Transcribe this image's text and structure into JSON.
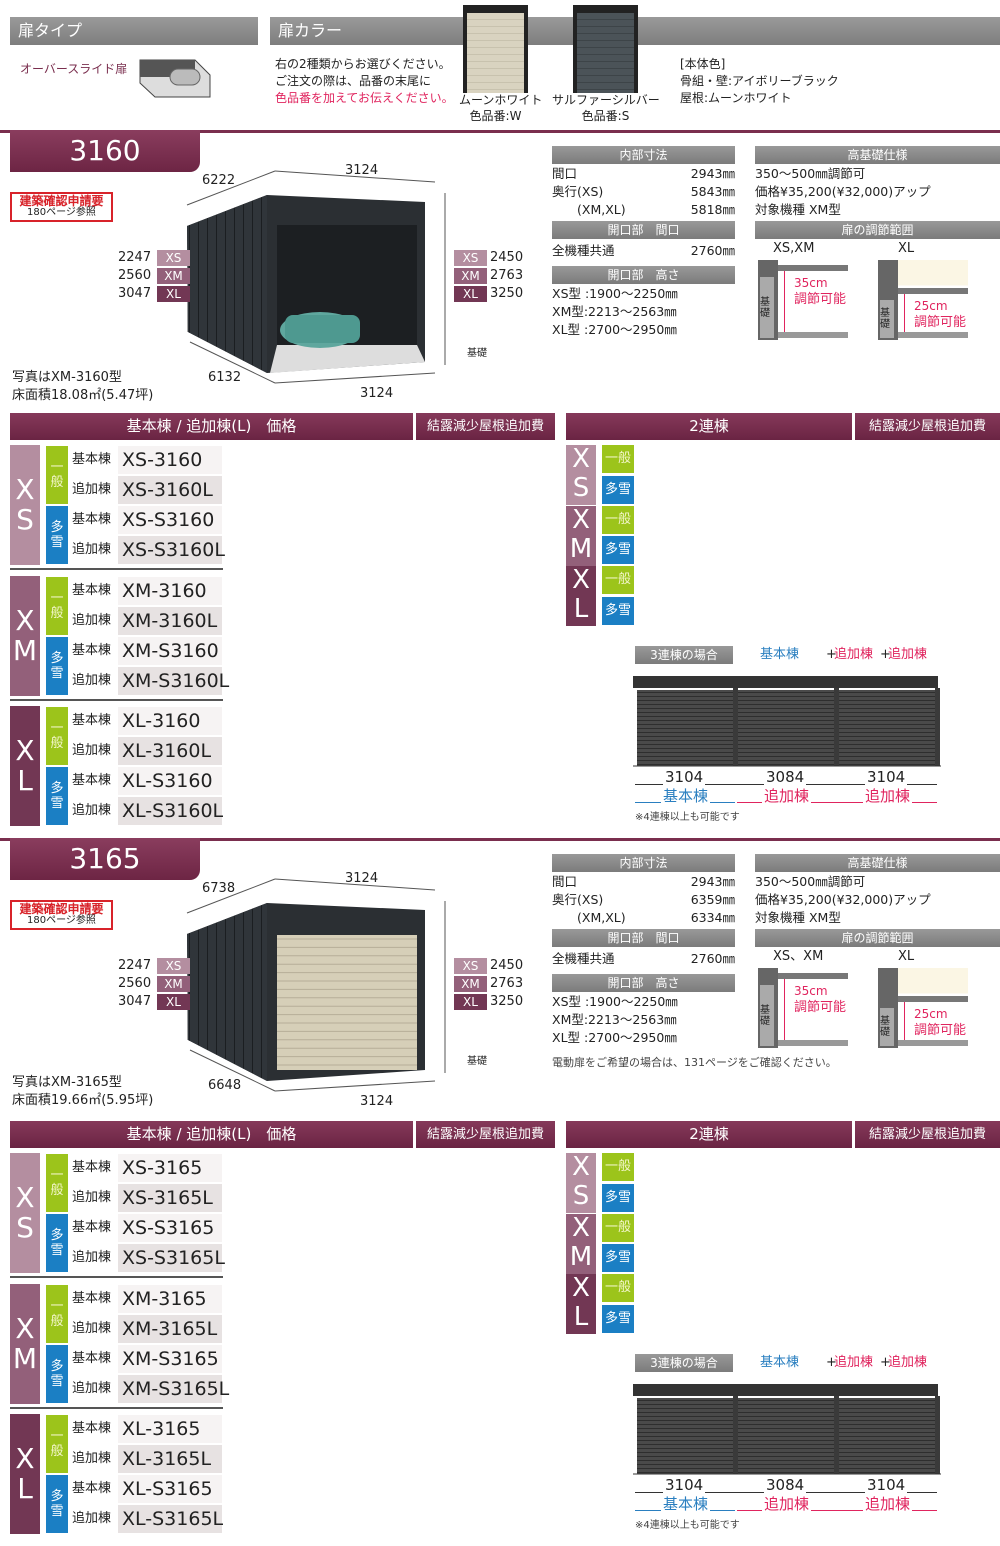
{
  "colors": {
    "maroon": "#7a2e4e",
    "xs": "#b48ea0",
    "xm": "#93607a",
    "xl": "#723754",
    "general": "#9cc41b",
    "snow": "#1b7fc4",
    "blue_text": "#2a7fc0",
    "red_text": "#e0245e"
  },
  "door_type": {
    "header": "扉タイプ",
    "name": "オーバースライド扉"
  },
  "door_color": {
    "header": "扉カラー",
    "instructions": [
      "右の2種類からお選びください。",
      "ご注文の際は、品番の末尾に"
    ],
    "instruction_red": "色品番を加えてお伝えください。",
    "options": [
      {
        "name": "ムーンホワイト",
        "code": "色品番:W",
        "color": "#d9d3c0"
      },
      {
        "name": "サルファーシルバー",
        "code": "色品番:S",
        "color": "#4b5358"
      }
    ],
    "body_color": [
      "[本体色]",
      "骨組・壁:アイボリーブラック",
      "屋根:ムーンホワイト"
    ]
  },
  "sections": [
    {
      "model": "3160",
      "permit": [
        "建築確認申請要",
        "180ページ参照"
      ],
      "dims": {
        "top_depth": "6222",
        "top_width": "3124",
        "bottom_depth": "6132",
        "bottom_width": "3124",
        "foundation": "基礎"
      },
      "heights_left": [
        {
          "size": "XS",
          "value": "2247"
        },
        {
          "size": "XM",
          "value": "2560"
        },
        {
          "size": "XL",
          "value": "3047"
        }
      ],
      "heights_right": [
        {
          "size": "XS",
          "value": "2450"
        },
        {
          "size": "XM",
          "value": "2763"
        },
        {
          "size": "XL",
          "value": "3250"
        }
      ],
      "photo_caption": "写真はXM-3160型",
      "floor_area": "床面積18.08㎡(5.47坪)",
      "interior": {
        "header": "内部寸法",
        "rows": [
          [
            "間口",
            "2943㎜"
          ],
          [
            "奥行(XS)",
            "5843㎜"
          ],
          [
            "　　(XM,XL)",
            "5818㎜"
          ]
        ]
      },
      "opening_width": {
        "header": "開口部　間口",
        "rows": [
          [
            "全機種共通",
            "2760㎜"
          ]
        ]
      },
      "opening_height": {
        "header": "開口部　高さ",
        "rows": [
          "XS型 :1900～2250㎜",
          "XM型:2213～2563㎜",
          "XL型 :2700～2950㎜"
        ]
      },
      "high_foundation": {
        "header": "高基礎仕様",
        "rows": [
          "350～500㎜調節可",
          "価格¥35,200(¥32,000)アップ",
          "対象機種 XM型"
        ]
      },
      "adjust": {
        "header": "扉の調節範囲",
        "foundation": "基礎",
        "items": [
          {
            "label": "XS,XM",
            "range": "35cm",
            "text": "調節可能"
          },
          {
            "label": "XL",
            "range": "25cm",
            "text": "調節可能"
          }
        ]
      },
      "note": ""
    },
    {
      "model": "3165",
      "permit": [
        "建築確認申請要",
        "180ページ参照"
      ],
      "dims": {
        "top_depth": "6738",
        "top_width": "3124",
        "bottom_depth": "6648",
        "bottom_width": "3124",
        "foundation": "基礎"
      },
      "heights_left": [
        {
          "size": "XS",
          "value": "2247"
        },
        {
          "size": "XM",
          "value": "2560"
        },
        {
          "size": "XL",
          "value": "3047"
        }
      ],
      "heights_right": [
        {
          "size": "XS",
          "value": "2450"
        },
        {
          "size": "XM",
          "value": "2763"
        },
        {
          "size": "XL",
          "value": "3250"
        }
      ],
      "photo_caption": "写真はXM-3165型",
      "floor_area": "床面積19.66㎡(5.95坪)",
      "interior": {
        "header": "内部寸法",
        "rows": [
          [
            "間口",
            "2943㎜"
          ],
          [
            "奥行(XS)",
            "6359㎜"
          ],
          [
            "　　(XM,XL)",
            "6334㎜"
          ]
        ]
      },
      "opening_width": {
        "header": "開口部　間口",
        "rows": [
          [
            "全機種共通",
            "2760㎜"
          ]
        ]
      },
      "opening_height": {
        "header": "開口部　高さ",
        "rows": [
          "XS型 :1900～2250㎜",
          "XM型:2213～2563㎜",
          "XL型 :2700～2950㎜"
        ]
      },
      "high_foundation": {
        "header": "高基礎仕様",
        "rows": [
          "350～500㎜調節可",
          "価格¥35,200(¥32,000)アップ",
          "対象機種 XM型"
        ]
      },
      "adjust": {
        "header": "扉の調節範囲",
        "foundation": "基礎",
        "items": [
          {
            "label": "XS、XM",
            "range": "35cm",
            "text": "調節可能"
          },
          {
            "label": "XL",
            "range": "25cm",
            "text": "調節可能"
          }
        ]
      },
      "note": "電動扉をご希望の場合は、131ページをご確認ください。"
    }
  ],
  "price_tables": [
    {
      "header": "基本棟 / 追加棟(L)　価格",
      "extra_header": "結露減少屋根追加費",
      "groups": [
        {
          "size": "XS",
          "types": [
            {
              "type": "一般",
              "rows": [
                [
                  "基本棟",
                  "XS-3160"
                ],
                [
                  "追加棟",
                  "XS-3160L"
                ]
              ]
            },
            {
              "type": "多雪",
              "rows": [
                [
                  "基本棟",
                  "XS-S3160"
                ],
                [
                  "追加棟",
                  "XS-S3160L"
                ]
              ]
            }
          ]
        },
        {
          "size": "XM",
          "types": [
            {
              "type": "一般",
              "rows": [
                [
                  "基本棟",
                  "XM-3160"
                ],
                [
                  "追加棟",
                  "XM-3160L"
                ]
              ]
            },
            {
              "type": "多雪",
              "rows": [
                [
                  "基本棟",
                  "XM-S3160"
                ],
                [
                  "追加棟",
                  "XM-S3160L"
                ]
              ]
            }
          ]
        },
        {
          "size": "XL",
          "types": [
            {
              "type": "一般",
              "rows": [
                [
                  "基本棟",
                  "XL-3160"
                ],
                [
                  "追加棟",
                  "XL-3160L"
                ]
              ]
            },
            {
              "type": "多雪",
              "rows": [
                [
                  "基本棟",
                  "XL-S3160"
                ],
                [
                  "追加棟",
                  "XL-S3160L"
                ]
              ]
            }
          ]
        }
      ]
    },
    {
      "header": "基本棟 / 追加棟(L)　価格",
      "extra_header": "結露減少屋根追加費",
      "groups": [
        {
          "size": "XS",
          "types": [
            {
              "type": "一般",
              "rows": [
                [
                  "基本棟",
                  "XS-3165"
                ],
                [
                  "追加棟",
                  "XS-3165L"
                ]
              ]
            },
            {
              "type": "多雪",
              "rows": [
                [
                  "基本棟",
                  "XS-S3165"
                ],
                [
                  "追加棟",
                  "XS-S3165L"
                ]
              ]
            }
          ]
        },
        {
          "size": "XM",
          "types": [
            {
              "type": "一般",
              "rows": [
                [
                  "基本棟",
                  "XM-3165"
                ],
                [
                  "追加棟",
                  "XM-3165L"
                ]
              ]
            },
            {
              "type": "多雪",
              "rows": [
                [
                  "基本棟",
                  "XM-S3165"
                ],
                [
                  "追加棟",
                  "XM-S3165L"
                ]
              ]
            }
          ]
        },
        {
          "size": "XL",
          "types": [
            {
              "type": "一般",
              "rows": [
                [
                  "基本棟",
                  "XL-3165"
                ],
                [
                  "追加棟",
                  "XL-3165L"
                ]
              ]
            },
            {
              "type": "多雪",
              "rows": [
                [
                  "基本棟",
                  "XL-S3165"
                ],
                [
                  "追加棟",
                  "XL-S3165L"
                ]
              ]
            }
          ]
        }
      ]
    }
  ],
  "double": {
    "header": "2連棟",
    "extra_header": "結露減少屋根追加費",
    "sizes": [
      "XS",
      "XM",
      "XL"
    ],
    "types": [
      "一般",
      "多雪"
    ]
  },
  "triple": {
    "label": "3連棟の場合",
    "formula": [
      "基本棟",
      "+",
      "追加棟",
      "+",
      "追加棟"
    ],
    "widths": [
      "3104",
      "3084",
      "3104"
    ],
    "units": [
      "基本棟",
      "追加棟",
      "追加棟"
    ],
    "note": "※4連棟以上も可能です"
  }
}
